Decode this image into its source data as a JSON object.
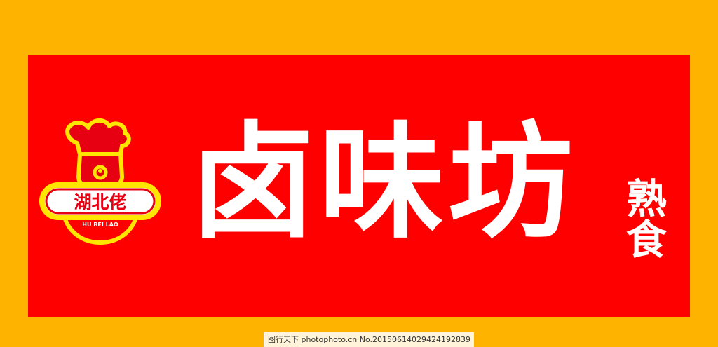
{
  "colors": {
    "border": "#fdb300",
    "sign": "#ff0000",
    "text": "#ffffff",
    "logo_yellow": "#ffe600",
    "logo_red": "#e60012"
  },
  "sign": {
    "title": "卤味坊",
    "side": "熟食"
  },
  "logo": {
    "name_cn": "湖北佬",
    "name_en": "HU BEI LAO"
  },
  "watermark": {
    "text": "图行天下 photophoto.cn  No.20150614029424192839"
  }
}
